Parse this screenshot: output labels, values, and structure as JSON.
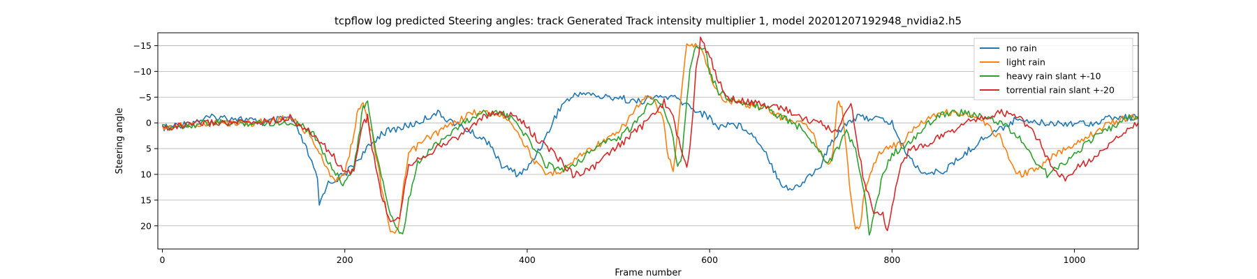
{
  "chart_data": {
    "type": "line",
    "title": "tcpflow log predicted Steering angles: track Generated Track intensity multiplier 1, model 20201207192948_nvidia2.h5",
    "xlabel": "Frame number",
    "ylabel": "Steering angle",
    "xlim": [
      -5,
      1070
    ],
    "ylim": [
      24.5,
      -17.5
    ],
    "y_inverted": true,
    "xticks": [
      0,
      200,
      400,
      600,
      800,
      1000
    ],
    "yticks": [
      -15,
      -10,
      -5,
      0,
      5,
      10,
      15,
      20
    ],
    "ytick_labels": [
      "−15",
      "−10",
      "−5",
      "0",
      "5",
      "10",
      "15",
      "20"
    ],
    "grid": "y-major",
    "legend_position": "upper right",
    "series": [
      {
        "name": "no rain",
        "color": "#1f77b4",
        "points": [
          [
            0,
            1
          ],
          [
            30,
            0
          ],
          [
            50,
            -1
          ],
          [
            80,
            -1
          ],
          [
            110,
            0
          ],
          [
            140,
            -1
          ],
          [
            150,
            2
          ],
          [
            160,
            6
          ],
          [
            170,
            11
          ],
          [
            172,
            16
          ],
          [
            180,
            12
          ],
          [
            190,
            11
          ],
          [
            200,
            10
          ],
          [
            210,
            8
          ],
          [
            220,
            6
          ],
          [
            230,
            4
          ],
          [
            240,
            2
          ],
          [
            260,
            1
          ],
          [
            280,
            0
          ],
          [
            300,
            -2
          ],
          [
            320,
            0
          ],
          [
            340,
            2
          ],
          [
            360,
            4
          ],
          [
            370,
            8
          ],
          [
            380,
            9
          ],
          [
            390,
            10
          ],
          [
            400,
            9
          ],
          [
            410,
            6
          ],
          [
            420,
            3
          ],
          [
            430,
            -1
          ],
          [
            440,
            -4
          ],
          [
            450,
            -5
          ],
          [
            460,
            -6
          ],
          [
            480,
            -5
          ],
          [
            500,
            -5
          ],
          [
            520,
            -4
          ],
          [
            540,
            -5
          ],
          [
            560,
            -5
          ],
          [
            580,
            -3
          ],
          [
            600,
            -1
          ],
          [
            610,
            1
          ],
          [
            620,
            0
          ],
          [
            640,
            1
          ],
          [
            660,
            5
          ],
          [
            670,
            9
          ],
          [
            680,
            12
          ],
          [
            690,
            13
          ],
          [
            700,
            12
          ],
          [
            710,
            10
          ],
          [
            720,
            9
          ],
          [
            730,
            5
          ],
          [
            740,
            2
          ],
          [
            750,
            0
          ],
          [
            760,
            -1
          ],
          [
            780,
            -1
          ],
          [
            800,
            0
          ],
          [
            810,
            4
          ],
          [
            820,
            7
          ],
          [
            830,
            9
          ],
          [
            840,
            10
          ],
          [
            860,
            9
          ],
          [
            880,
            6
          ],
          [
            900,
            3
          ],
          [
            920,
            1
          ],
          [
            940,
            -1
          ],
          [
            960,
            0
          ],
          [
            980,
            0
          ],
          [
            1000,
            0
          ],
          [
            1020,
            0
          ],
          [
            1040,
            -1
          ],
          [
            1070,
            -1
          ]
        ]
      },
      {
        "name": "light rain",
        "color": "#ff7f0e",
        "points": [
          [
            0,
            1
          ],
          [
            50,
            0
          ],
          [
            100,
            0
          ],
          [
            140,
            -1
          ],
          [
            160,
            2
          ],
          [
            170,
            5
          ],
          [
            180,
            9
          ],
          [
            190,
            11
          ],
          [
            200,
            10
          ],
          [
            205,
            6
          ],
          [
            210,
            2
          ],
          [
            215,
            -3
          ],
          [
            220,
            -4
          ],
          [
            230,
            2
          ],
          [
            240,
            12
          ],
          [
            250,
            21
          ],
          [
            255,
            22
          ],
          [
            260,
            19
          ],
          [
            265,
            12
          ],
          [
            270,
            6
          ],
          [
            290,
            3
          ],
          [
            320,
            0
          ],
          [
            340,
            -2
          ],
          [
            360,
            -2
          ],
          [
            380,
            -1
          ],
          [
            390,
            2
          ],
          [
            400,
            5
          ],
          [
            410,
            8
          ],
          [
            420,
            10
          ],
          [
            440,
            9
          ],
          [
            460,
            6
          ],
          [
            480,
            4
          ],
          [
            500,
            2
          ],
          [
            520,
            -3
          ],
          [
            530,
            -5
          ],
          [
            540,
            -4
          ],
          [
            550,
            0
          ],
          [
            555,
            7
          ],
          [
            560,
            9
          ],
          [
            565,
            2
          ],
          [
            570,
            -8
          ],
          [
            575,
            -15
          ],
          [
            590,
            -15
          ],
          [
            600,
            -10
          ],
          [
            610,
            -5
          ],
          [
            630,
            -4
          ],
          [
            660,
            -3
          ],
          [
            680,
            -1
          ],
          [
            700,
            0
          ],
          [
            710,
            1
          ],
          [
            720,
            5
          ],
          [
            730,
            8
          ],
          [
            735,
            6
          ],
          [
            740,
            -4
          ],
          [
            745,
            -3
          ],
          [
            750,
            5
          ],
          [
            755,
            15
          ],
          [
            760,
            21
          ],
          [
            765,
            20
          ],
          [
            770,
            13
          ],
          [
            780,
            8
          ],
          [
            790,
            5
          ],
          [
            810,
            4
          ],
          [
            830,
            0
          ],
          [
            850,
            -2
          ],
          [
            870,
            -2
          ],
          [
            890,
            -1
          ],
          [
            900,
            0
          ],
          [
            920,
            3
          ],
          [
            930,
            8
          ],
          [
            940,
            10
          ],
          [
            960,
            9
          ],
          [
            980,
            6
          ],
          [
            1000,
            4
          ],
          [
            1020,
            2
          ],
          [
            1040,
            0
          ],
          [
            1060,
            -1
          ],
          [
            1070,
            -1
          ]
        ]
      },
      {
        "name": "heavy rain slant +-10",
        "color": "#2ca02c",
        "points": [
          [
            0,
            1
          ],
          [
            50,
            0
          ],
          [
            100,
            0
          ],
          [
            150,
            0
          ],
          [
            170,
            3
          ],
          [
            180,
            7
          ],
          [
            190,
            10
          ],
          [
            200,
            12
          ],
          [
            210,
            8
          ],
          [
            215,
            3
          ],
          [
            220,
            -3
          ],
          [
            225,
            -4
          ],
          [
            230,
            2
          ],
          [
            240,
            10
          ],
          [
            250,
            18
          ],
          [
            260,
            22
          ],
          [
            265,
            21
          ],
          [
            270,
            15
          ],
          [
            280,
            8
          ],
          [
            300,
            4
          ],
          [
            330,
            0
          ],
          [
            350,
            -2
          ],
          [
            370,
            -2
          ],
          [
            390,
            0
          ],
          [
            400,
            3
          ],
          [
            420,
            8
          ],
          [
            440,
            9
          ],
          [
            460,
            7
          ],
          [
            480,
            4
          ],
          [
            500,
            3
          ],
          [
            520,
            0
          ],
          [
            530,
            -3
          ],
          [
            540,
            -5
          ],
          [
            550,
            -3
          ],
          [
            560,
            3
          ],
          [
            565,
            9
          ],
          [
            570,
            6
          ],
          [
            575,
            -5
          ],
          [
            580,
            -12
          ],
          [
            585,
            -15
          ],
          [
            595,
            -15
          ],
          [
            600,
            -10
          ],
          [
            610,
            -6
          ],
          [
            630,
            -4
          ],
          [
            660,
            -3
          ],
          [
            680,
            -1
          ],
          [
            700,
            1
          ],
          [
            720,
            5
          ],
          [
            730,
            8
          ],
          [
            740,
            5
          ],
          [
            750,
            2
          ],
          [
            760,
            5
          ],
          [
            770,
            14
          ],
          [
            775,
            22
          ],
          [
            780,
            18
          ],
          [
            790,
            10
          ],
          [
            800,
            6
          ],
          [
            820,
            4
          ],
          [
            840,
            0
          ],
          [
            860,
            -2
          ],
          [
            880,
            -2
          ],
          [
            900,
            -1
          ],
          [
            920,
            0
          ],
          [
            940,
            3
          ],
          [
            960,
            8
          ],
          [
            970,
            10
          ],
          [
            980,
            9
          ],
          [
            1000,
            6
          ],
          [
            1020,
            3
          ],
          [
            1040,
            1
          ],
          [
            1060,
            -1
          ],
          [
            1070,
            -1
          ]
        ]
      },
      {
        "name": "torrential rain slant +-20",
        "color": "#d62728",
        "points": [
          [
            0,
            1
          ],
          [
            50,
            0
          ],
          [
            100,
            0
          ],
          [
            140,
            -1
          ],
          [
            170,
            3
          ],
          [
            190,
            7
          ],
          [
            200,
            10
          ],
          [
            210,
            9
          ],
          [
            220,
            0
          ],
          [
            225,
            -1
          ],
          [
            230,
            5
          ],
          [
            240,
            14
          ],
          [
            250,
            19
          ],
          [
            260,
            18
          ],
          [
            265,
            13
          ],
          [
            270,
            8
          ],
          [
            300,
            5
          ],
          [
            330,
            2
          ],
          [
            350,
            -1
          ],
          [
            370,
            -2
          ],
          [
            390,
            -1
          ],
          [
            410,
            3
          ],
          [
            430,
            6
          ],
          [
            450,
            10
          ],
          [
            470,
            9
          ],
          [
            490,
            6
          ],
          [
            510,
            3
          ],
          [
            530,
            0
          ],
          [
            540,
            -2
          ],
          [
            550,
            -4
          ],
          [
            560,
            -1
          ],
          [
            570,
            6
          ],
          [
            575,
            9
          ],
          [
            580,
            2
          ],
          [
            585,
            -10
          ],
          [
            590,
            -16
          ],
          [
            600,
            -13
          ],
          [
            610,
            -8
          ],
          [
            620,
            -5
          ],
          [
            640,
            -4
          ],
          [
            680,
            -3
          ],
          [
            700,
            -1
          ],
          [
            720,
            0
          ],
          [
            740,
            2
          ],
          [
            750,
            -3
          ],
          [
            755,
            -4
          ],
          [
            760,
            2
          ],
          [
            770,
            12
          ],
          [
            780,
            17
          ],
          [
            790,
            18
          ],
          [
            795,
            21
          ],
          [
            800,
            16
          ],
          [
            810,
            8
          ],
          [
            820,
            5
          ],
          [
            840,
            4
          ],
          [
            860,
            2
          ],
          [
            880,
            0
          ],
          [
            900,
            -1
          ],
          [
            920,
            -2
          ],
          [
            940,
            -1
          ],
          [
            960,
            3
          ],
          [
            970,
            7
          ],
          [
            980,
            10
          ],
          [
            990,
            11
          ],
          [
            1000,
            9
          ],
          [
            1020,
            7
          ],
          [
            1040,
            4
          ],
          [
            1060,
            1
          ],
          [
            1070,
            0
          ]
        ]
      }
    ]
  }
}
